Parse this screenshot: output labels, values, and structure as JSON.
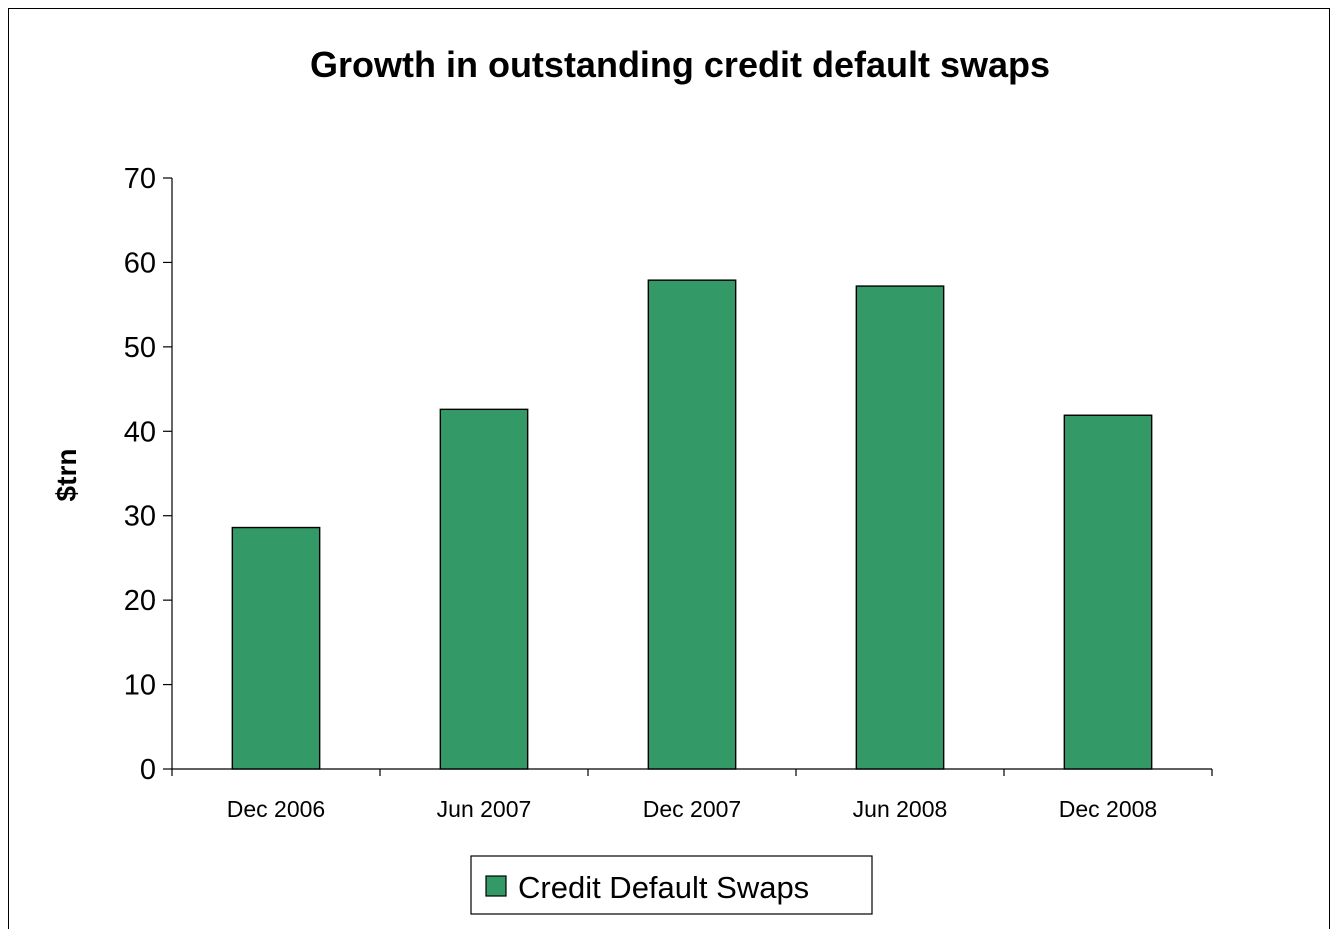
{
  "chart_data": {
    "type": "bar",
    "title": "Growth in outstanding credit default swaps",
    "xlabel": "",
    "ylabel": "$trn",
    "categories": [
      "Dec 2006",
      "Jun 2007",
      "Dec 2007",
      "Jun 2008",
      "Dec 2008"
    ],
    "series": [
      {
        "name": "Credit Default Swaps",
        "values": [
          28.6,
          42.6,
          57.9,
          57.2,
          41.9
        ],
        "color": "#339966"
      }
    ],
    "ylim": [
      0,
      70
    ],
    "yticks": [
      0,
      10,
      20,
      30,
      40,
      50,
      60,
      70
    ],
    "grid": false,
    "legend": "bottom"
  }
}
